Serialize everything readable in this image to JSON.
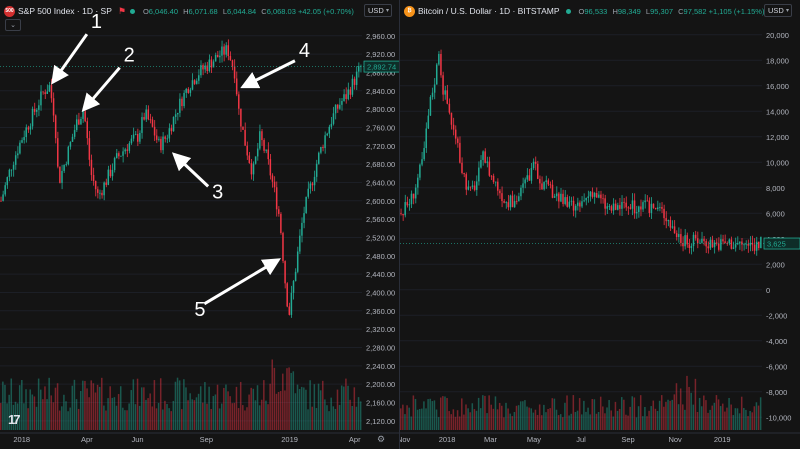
{
  "colors": {
    "up": "#22ab94",
    "down": "#f23645",
    "bg": "#141414",
    "text": "#d1d4dc",
    "grid": "#1c1f26"
  },
  "left": {
    "title": "S&P 500 Index · 1D · SP",
    "logo_text": "500",
    "ohlc": {
      "o_label": "O",
      "o": "6,046.40",
      "h_label": "H",
      "h": "6,071.68",
      "l_label": "L",
      "l": "6,044.84",
      "c_label": "C",
      "c": "6,068.03",
      "chg": "+42.05 (+0.70%)"
    },
    "currency": "USD",
    "last_price": "2,892.74",
    "tv_logo": "17"
  },
  "right": {
    "title": "Bitcoin / U.S. Dollar · 1D · BITSTAMP",
    "logo_text": "₿",
    "ohlc": {
      "o_label": "O",
      "o": "96,533",
      "h_label": "H",
      "h": "98,349",
      "l_label": "L",
      "l": "95,307",
      "c_label": "C",
      "c": "97,582",
      "chg": "+1,105 (+1.15%)"
    },
    "currency": "USD",
    "last_price": "3,625"
  },
  "chart_data": [
    {
      "type": "candlestick",
      "symbol": "S&P 500 Index",
      "interval": "1D",
      "y_ticks": [
        2120,
        2160,
        2200,
        2240,
        2280,
        2320,
        2360,
        2400,
        2440,
        2480,
        2520,
        2560,
        2600,
        2640,
        2680,
        2720,
        2760,
        2800,
        2840,
        2880,
        2920,
        2960
      ],
      "y_tick_labels": [
        "2,120.00",
        "2,160.00",
        "2,200.00",
        "2,240.00",
        "2,280.00",
        "2,320.00",
        "2,360.00",
        "2,400.00",
        "2,440.00",
        "2,480.00",
        "2,520.00",
        "2,560.00",
        "2,600.00",
        "2,640.00",
        "2,680.00",
        "2,720.00",
        "2,760.00",
        "2,800.00",
        "2,840.00",
        "2,880.00",
        "2,920.00",
        "2,960.00"
      ],
      "ylim": [
        2100,
        2990
      ],
      "x_ticks": [
        "2018",
        "Apr",
        "Jun",
        "Sep",
        "2019",
        "Apr"
      ],
      "x_tick_pos": [
        0.06,
        0.24,
        0.38,
        0.57,
        0.8,
        0.98
      ],
      "price_path": [
        [
          0.0,
          2600
        ],
        [
          0.03,
          2680
        ],
        [
          0.06,
          2740
        ],
        [
          0.09,
          2790
        ],
        [
          0.12,
          2840
        ],
        [
          0.135,
          2850
        ],
        [
          0.15,
          2780
        ],
        [
          0.16,
          2640
        ],
        [
          0.18,
          2690
        ],
        [
          0.21,
          2770
        ],
        [
          0.23,
          2800
        ],
        [
          0.25,
          2660
        ],
        [
          0.27,
          2610
        ],
        [
          0.29,
          2640
        ],
        [
          0.32,
          2690
        ],
        [
          0.35,
          2720
        ],
        [
          0.38,
          2740
        ],
        [
          0.4,
          2790
        ],
        [
          0.42,
          2760
        ],
        [
          0.44,
          2720
        ],
        [
          0.46,
          2740
        ],
        [
          0.49,
          2800
        ],
        [
          0.52,
          2850
        ],
        [
          0.55,
          2880
        ],
        [
          0.58,
          2900
        ],
        [
          0.61,
          2920
        ],
        [
          0.63,
          2930
        ],
        [
          0.65,
          2880
        ],
        [
          0.66,
          2800
        ],
        [
          0.68,
          2720
        ],
        [
          0.7,
          2660
        ],
        [
          0.72,
          2740
        ],
        [
          0.74,
          2690
        ],
        [
          0.76,
          2620
        ],
        [
          0.775,
          2560
        ],
        [
          0.79,
          2420
        ],
        [
          0.8,
          2350
        ],
        [
          0.82,
          2460
        ],
        [
          0.84,
          2570
        ],
        [
          0.86,
          2630
        ],
        [
          0.88,
          2690
        ],
        [
          0.9,
          2740
        ],
        [
          0.92,
          2780
        ],
        [
          0.94,
          2810
        ],
        [
          0.96,
          2830
        ],
        [
          0.98,
          2860
        ],
        [
          1.0,
          2892
        ]
      ],
      "last": 2892.74,
      "annotations": [
        {
          "label": "1",
          "at": [
            0.135,
            2850
          ]
        },
        {
          "label": "2",
          "at": [
            0.22,
            2790
          ]
        },
        {
          "label": "3",
          "at": [
            0.47,
            2710
          ]
        },
        {
          "label": "4",
          "at": [
            0.66,
            2840
          ]
        },
        {
          "label": "5",
          "at": [
            0.78,
            2480
          ]
        }
      ]
    },
    {
      "type": "candlestick",
      "symbol": "Bitcoin / U.S. Dollar",
      "interval": "1D",
      "exchange": "BITSTAMP",
      "y_ticks": [
        -10000,
        -8000,
        -6000,
        -4000,
        -2000,
        0,
        2000,
        4000,
        6000,
        8000,
        10000,
        12000,
        14000,
        16000,
        18000,
        20000
      ],
      "y_tick_labels": [
        "-10,000",
        "-8,000",
        "-6,000",
        "-4,000",
        "-2,000",
        "0",
        "2,000",
        "4,000",
        "6,000",
        "8,000",
        "10,000",
        "12,000",
        "14,000",
        "16,000",
        "18,000",
        "20,000"
      ],
      "ylim": [
        -11000,
        21000
      ],
      "x_ticks": [
        "Nov",
        "2018",
        "Mar",
        "May",
        "Jul",
        "Sep",
        "Nov",
        "2019"
      ],
      "x_tick_pos": [
        0.01,
        0.13,
        0.25,
        0.37,
        0.5,
        0.63,
        0.76,
        0.89
      ],
      "price_path": [
        [
          0.0,
          6000
        ],
        [
          0.03,
          7200
        ],
        [
          0.06,
          10000
        ],
        [
          0.08,
          14500
        ],
        [
          0.1,
          17500
        ],
        [
          0.105,
          19000
        ],
        [
          0.115,
          16000
        ],
        [
          0.13,
          14500
        ],
        [
          0.15,
          12000
        ],
        [
          0.17,
          9500
        ],
        [
          0.19,
          7500
        ],
        [
          0.21,
          8500
        ],
        [
          0.23,
          10500
        ],
        [
          0.25,
          9000
        ],
        [
          0.27,
          8000
        ],
        [
          0.29,
          7000
        ],
        [
          0.31,
          6800
        ],
        [
          0.33,
          7500
        ],
        [
          0.35,
          8700
        ],
        [
          0.37,
          9600
        ],
        [
          0.39,
          8500
        ],
        [
          0.41,
          7800
        ],
        [
          0.43,
          7500
        ],
        [
          0.45,
          6900
        ],
        [
          0.47,
          6500
        ],
        [
          0.49,
          6300
        ],
        [
          0.51,
          7000
        ],
        [
          0.53,
          7900
        ],
        [
          0.55,
          7200
        ],
        [
          0.57,
          6500
        ],
        [
          0.59,
          6300
        ],
        [
          0.61,
          6600
        ],
        [
          0.63,
          6500
        ],
        [
          0.66,
          6400
        ],
        [
          0.69,
          6500
        ],
        [
          0.72,
          6300
        ],
        [
          0.74,
          5700
        ],
        [
          0.76,
          4600
        ],
        [
          0.78,
          4000
        ],
        [
          0.8,
          3500
        ],
        [
          0.82,
          4000
        ],
        [
          0.85,
          3800
        ],
        [
          0.88,
          3600
        ],
        [
          0.91,
          3700
        ],
        [
          0.94,
          3600
        ],
        [
          0.97,
          3500
        ],
        [
          1.0,
          3625
        ]
      ],
      "last": 3625
    }
  ]
}
